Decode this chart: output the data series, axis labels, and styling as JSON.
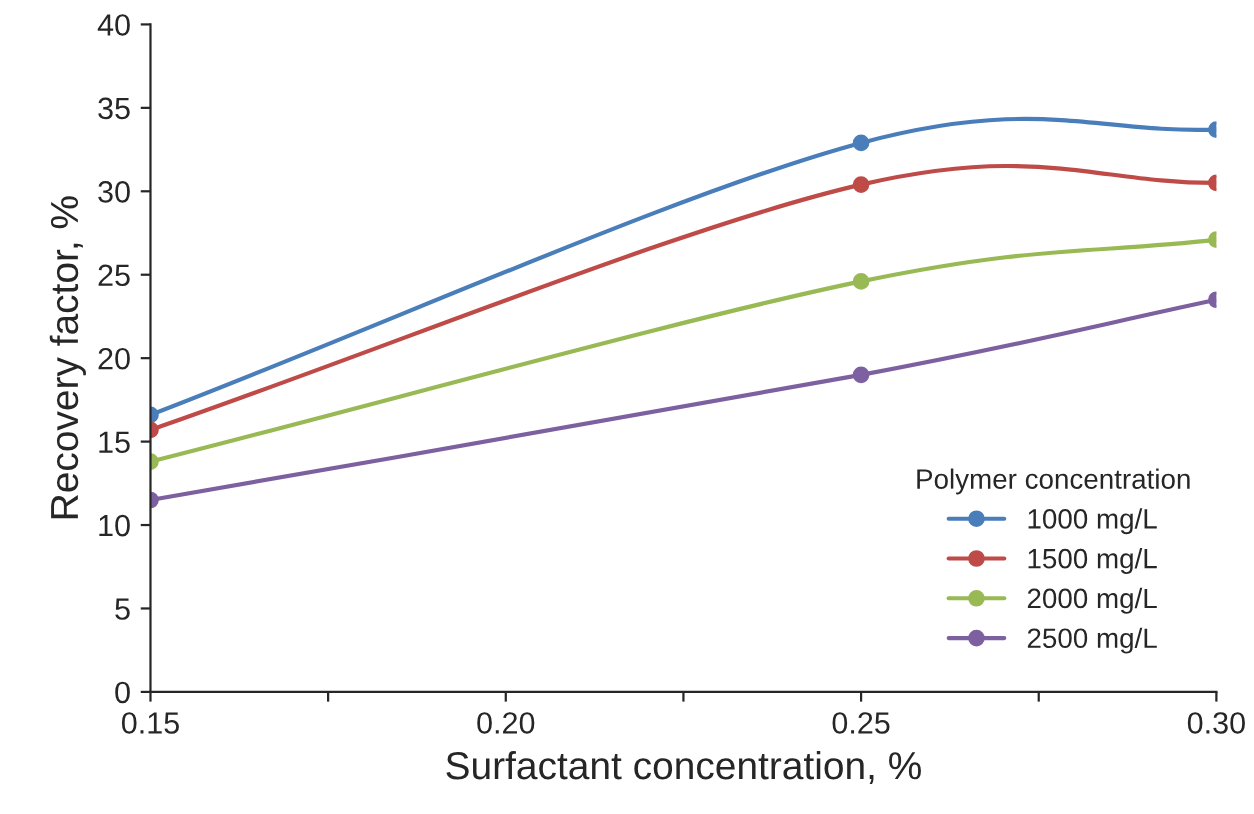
{
  "chart_data": {
    "type": "line",
    "xlabel": "Surfactant concentration, %",
    "ylabel": "Recovery factor, %",
    "legend_title": "Polymer concentration",
    "x": [
      0.15,
      0.25,
      0.3
    ],
    "series": [
      {
        "name": "1000 mg/L",
        "color": "#4a7ebb",
        "values": [
          16.6,
          32.9,
          33.7
        ]
      },
      {
        "name": "1500 mg/L",
        "color": "#be4b48",
        "values": [
          15.7,
          30.4,
          30.5
        ]
      },
      {
        "name": "2000 mg/L",
        "color": "#98b954",
        "values": [
          13.8,
          24.6,
          27.1
        ]
      },
      {
        "name": "2500 mg/L",
        "color": "#7d60a0",
        "values": [
          11.5,
          19.0,
          23.5
        ]
      }
    ],
    "xlim": [
      0.15,
      0.3
    ],
    "xticks": [
      {
        "value": 0.15,
        "label": "0.15"
      },
      {
        "value": 0.175,
        "label": null
      },
      {
        "value": 0.2,
        "label": "0.20"
      },
      {
        "value": 0.225,
        "label": null
      },
      {
        "value": 0.25,
        "label": "0.25"
      },
      {
        "value": 0.275,
        "label": null
      },
      {
        "value": 0.3,
        "label": "0.30"
      }
    ],
    "ylim": [
      0,
      40
    ],
    "yticks": [
      0,
      5,
      10,
      15,
      20,
      25,
      30,
      35,
      40
    ],
    "marker": "circle",
    "legend": "bottom right",
    "grid": false
  }
}
